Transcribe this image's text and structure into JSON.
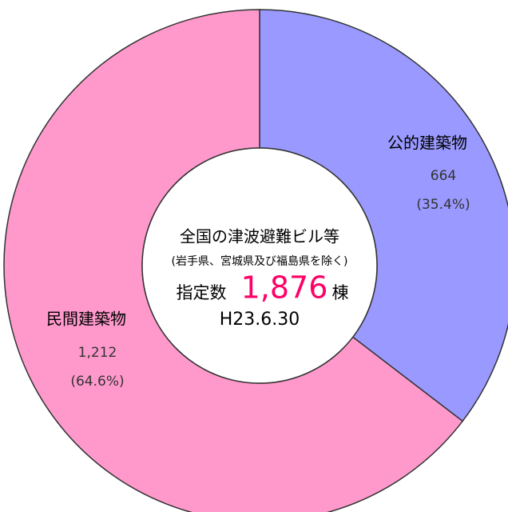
{
  "chart_data": {
    "type": "donut",
    "categories": [
      "公的建築物",
      "民間建築物"
    ],
    "values": [
      664,
      1212
    ],
    "value_labels": [
      "664",
      "1,212"
    ],
    "percent_labels": [
      "(35.4%)",
      "(64.6%)"
    ],
    "colors": [
      "#9999ff",
      "#ff99cc"
    ],
    "center_title": "全国の津波避難ビル等",
    "center_note": "(岩手県、宮城県及び福島県を除く)",
    "total_prefix": "指定数",
    "total_label": "1,876",
    "total_suffix": "棟",
    "date": "H23.6.30"
  }
}
